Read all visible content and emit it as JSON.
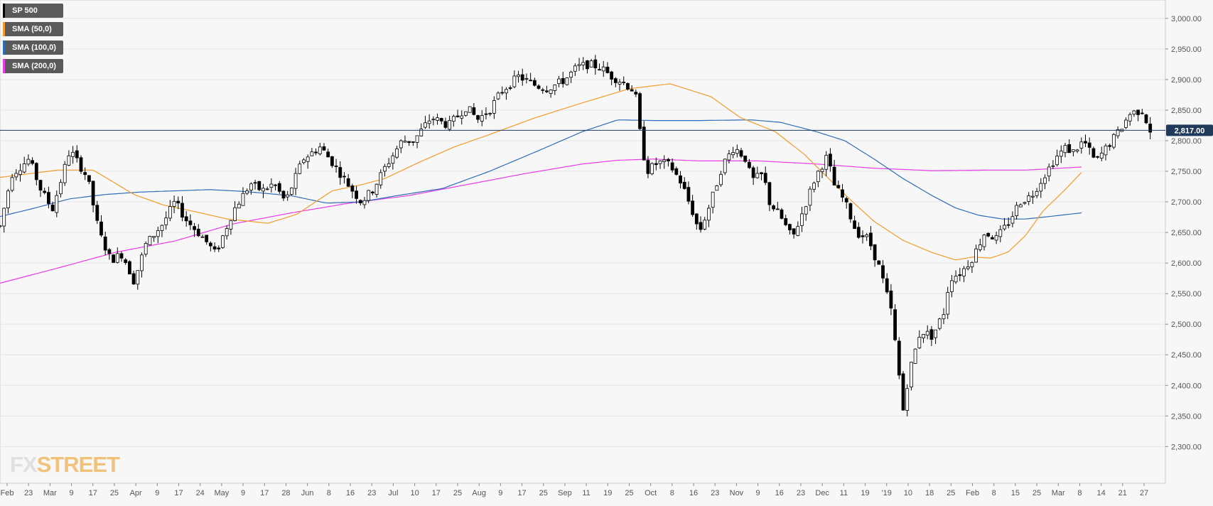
{
  "chart_data": {
    "type": "candlestick",
    "series": [
      {
        "name": "SP 500",
        "color": "#000000"
      },
      {
        "name": "SMA (50,0)",
        "color": "#f39c2c"
      },
      {
        "name": "SMA (100,0)",
        "color": "#2f6db5"
      },
      {
        "name": "SMA (200,0)",
        "color": "#e83ce8"
      }
    ],
    "ylim": [
      2240,
      3030
    ],
    "y_ticks": [
      "3,000.00",
      "2,950.00",
      "2,900.00",
      "2,850.00",
      "2,800.00",
      "2,750.00",
      "2,700.00",
      "2,650.00",
      "2,600.00",
      "2,550.00",
      "2,500.00",
      "2,450.00",
      "2,400.00",
      "2,350.00",
      "2,300.00"
    ],
    "y_tick_values": [
      3000,
      2950,
      2900,
      2850,
      2800,
      2750,
      2700,
      2650,
      2600,
      2550,
      2500,
      2450,
      2400,
      2350,
      2300
    ],
    "x_ticks": [
      "Feb",
      "23",
      "Mar",
      "9",
      "17",
      "25",
      "Apr",
      "9",
      "17",
      "24",
      "May",
      "9",
      "17",
      "28",
      "Jun",
      "8",
      "16",
      "23",
      "Jul",
      "10",
      "17",
      "25",
      "Aug",
      "9",
      "17",
      "25",
      "Sep",
      "11",
      "19",
      "25",
      "Oct",
      "8",
      "16",
      "23",
      "Nov",
      "9",
      "16",
      "23",
      "Dec",
      "11",
      "19",
      "'19",
      "10",
      "18",
      "25",
      "Feb",
      "8",
      "15",
      "25",
      "Mar",
      "8",
      "14",
      "21",
      "27"
    ],
    "current_price": 2817.0,
    "current_price_label": "2,817.00",
    "sma50_anchors": [
      [
        0,
        2740
      ],
      [
        0.05,
        2752
      ],
      [
        0.08,
        2752
      ],
      [
        0.115,
        2712
      ],
      [
        0.14,
        2695
      ],
      [
        0.165,
        2685
      ],
      [
        0.195,
        2672
      ],
      [
        0.23,
        2665
      ],
      [
        0.255,
        2680
      ],
      [
        0.285,
        2718
      ],
      [
        0.31,
        2728
      ],
      [
        0.33,
        2738
      ],
      [
        0.36,
        2765
      ],
      [
        0.39,
        2790
      ],
      [
        0.42,
        2810
      ],
      [
        0.46,
        2838
      ],
      [
        0.5,
        2862
      ],
      [
        0.54,
        2885
      ],
      [
        0.575,
        2893
      ],
      [
        0.61,
        2872
      ],
      [
        0.635,
        2838
      ],
      [
        0.665,
        2815
      ],
      [
        0.69,
        2778
      ],
      [
        0.71,
        2740
      ],
      [
        0.73,
        2703
      ],
      [
        0.75,
        2668
      ],
      [
        0.775,
        2637
      ],
      [
        0.8,
        2617
      ],
      [
        0.82,
        2605
      ],
      [
        0.835,
        2610
      ],
      [
        0.85,
        2608
      ],
      [
        0.865,
        2618
      ],
      [
        0.88,
        2645
      ],
      [
        0.895,
        2685
      ],
      [
        0.915,
        2722
      ],
      [
        0.928,
        2748
      ]
    ],
    "sma100_anchors": [
      [
        0,
        2676
      ],
      [
        0.03,
        2690
      ],
      [
        0.06,
        2705
      ],
      [
        0.09,
        2712
      ],
      [
        0.12,
        2716
      ],
      [
        0.15,
        2718
      ],
      [
        0.18,
        2720
      ],
      [
        0.21,
        2717
      ],
      [
        0.25,
        2710
      ],
      [
        0.28,
        2698
      ],
      [
        0.31,
        2700
      ],
      [
        0.34,
        2710
      ],
      [
        0.38,
        2722
      ],
      [
        0.42,
        2750
      ],
      [
        0.46,
        2782
      ],
      [
        0.5,
        2815
      ],
      [
        0.53,
        2834
      ],
      [
        0.56,
        2833
      ],
      [
        0.6,
        2833
      ],
      [
        0.645,
        2834
      ],
      [
        0.67,
        2830
      ],
      [
        0.7,
        2815
      ],
      [
        0.725,
        2800
      ],
      [
        0.75,
        2770
      ],
      [
        0.775,
        2738
      ],
      [
        0.8,
        2710
      ],
      [
        0.82,
        2690
      ],
      [
        0.84,
        2678
      ],
      [
        0.86,
        2672
      ],
      [
        0.88,
        2672
      ],
      [
        0.9,
        2676
      ],
      [
        0.928,
        2682
      ]
    ],
    "sma200_anchors": [
      [
        0,
        2567
      ],
      [
        0.05,
        2592
      ],
      [
        0.1,
        2618
      ],
      [
        0.15,
        2636
      ],
      [
        0.2,
        2664
      ],
      [
        0.25,
        2682
      ],
      [
        0.3,
        2698
      ],
      [
        0.35,
        2710
      ],
      [
        0.4,
        2728
      ],
      [
        0.45,
        2746
      ],
      [
        0.5,
        2762
      ],
      [
        0.53,
        2768
      ],
      [
        0.56,
        2770
      ],
      [
        0.6,
        2767
      ],
      [
        0.65,
        2767
      ],
      [
        0.7,
        2762
      ],
      [
        0.75,
        2755
      ],
      [
        0.8,
        2751
      ],
      [
        0.85,
        2752
      ],
      [
        0.88,
        2752
      ],
      [
        0.9,
        2754
      ],
      [
        0.928,
        2757
      ]
    ],
    "price_anchors": [
      [
        0,
        2660
      ],
      [
        0.01,
        2745
      ],
      [
        0.025,
        2770
      ],
      [
        0.035,
        2720
      ],
      [
        0.045,
        2688
      ],
      [
        0.06,
        2785
      ],
      [
        0.075,
        2740
      ],
      [
        0.085,
        2650
      ],
      [
        0.095,
        2605
      ],
      [
        0.105,
        2615
      ],
      [
        0.115,
        2570
      ],
      [
        0.125,
        2630
      ],
      [
        0.14,
        2665
      ],
      [
        0.15,
        2700
      ],
      [
        0.16,
        2670
      ],
      [
        0.175,
        2640
      ],
      [
        0.185,
        2615
      ],
      [
        0.2,
        2685
      ],
      [
        0.215,
        2730
      ],
      [
        0.225,
        2718
      ],
      [
        0.235,
        2730
      ],
      [
        0.245,
        2700
      ],
      [
        0.26,
        2770
      ],
      [
        0.275,
        2790
      ],
      [
        0.29,
        2752
      ],
      [
        0.3,
        2725
      ],
      [
        0.31,
        2700
      ],
      [
        0.32,
        2720
      ],
      [
        0.33,
        2755
      ],
      [
        0.345,
        2800
      ],
      [
        0.355,
        2800
      ],
      [
        0.37,
        2838
      ],
      [
        0.385,
        2825
      ],
      [
        0.4,
        2855
      ],
      [
        0.41,
        2835
      ],
      [
        0.42,
        2850
      ],
      [
        0.43,
        2880
      ],
      [
        0.445,
        2905
      ],
      [
        0.46,
        2890
      ],
      [
        0.47,
        2885
      ],
      [
        0.485,
        2900
      ],
      [
        0.495,
        2920
      ],
      [
        0.505,
        2925
      ],
      [
        0.515,
        2920
      ],
      [
        0.525,
        2905
      ],
      [
        0.535,
        2895
      ],
      [
        0.545,
        2880
      ],
      [
        0.55,
        2800
      ],
      [
        0.555,
        2750
      ],
      [
        0.565,
        2765
      ],
      [
        0.575,
        2760
      ],
      [
        0.585,
        2730
      ],
      [
        0.595,
        2680
      ],
      [
        0.6,
        2650
      ],
      [
        0.61,
        2700
      ],
      [
        0.62,
        2760
      ],
      [
        0.63,
        2790
      ],
      [
        0.64,
        2770
      ],
      [
        0.645,
        2735
      ],
      [
        0.655,
        2745
      ],
      [
        0.66,
        2700
      ],
      [
        0.67,
        2675
      ],
      [
        0.68,
        2640
      ],
      [
        0.69,
        2690
      ],
      [
        0.7,
        2742
      ],
      [
        0.71,
        2775
      ],
      [
        0.715,
        2730
      ],
      [
        0.725,
        2700
      ],
      [
        0.735,
        2650
      ],
      [
        0.745,
        2640
      ],
      [
        0.755,
        2590
      ],
      [
        0.765,
        2520
      ],
      [
        0.77,
        2440
      ],
      [
        0.775,
        2360
      ],
      [
        0.78,
        2420
      ],
      [
        0.79,
        2490
      ],
      [
        0.8,
        2480
      ],
      [
        0.81,
        2520
      ],
      [
        0.815,
        2575
      ],
      [
        0.825,
        2585
      ],
      [
        0.835,
        2610
      ],
      [
        0.845,
        2650
      ],
      [
        0.855,
        2640
      ],
      [
        0.865,
        2665
      ],
      [
        0.875,
        2700
      ],
      [
        0.885,
        2710
      ],
      [
        0.895,
        2740
      ],
      [
        0.905,
        2770
      ],
      [
        0.915,
        2790
      ],
      [
        0.92,
        2780
      ],
      [
        0.93,
        2800
      ],
      [
        0.94,
        2765
      ],
      [
        0.95,
        2790
      ],
      [
        0.96,
        2815
      ],
      [
        0.97,
        2845
      ],
      [
        0.98,
        2850
      ],
      [
        0.987,
        2817
      ]
    ]
  },
  "legend": [
    {
      "label": "SP 500",
      "color": "#000000"
    },
    {
      "label": "SMA (50,0)",
      "color": "#f39c2c"
    },
    {
      "label": "SMA (100,0)",
      "color": "#2f6db5"
    },
    {
      "label": "SMA (200,0)",
      "color": "#e83ce8"
    }
  ],
  "logo": {
    "fx": "FX",
    "street": "STREET"
  },
  "colors": {
    "up_fill": "#ffffff",
    "down_fill": "#000000",
    "wick": "#000000",
    "current_line": "#1f3a5a",
    "price_tag": "#1f3a5a",
    "grid": "#e6e6e6"
  }
}
